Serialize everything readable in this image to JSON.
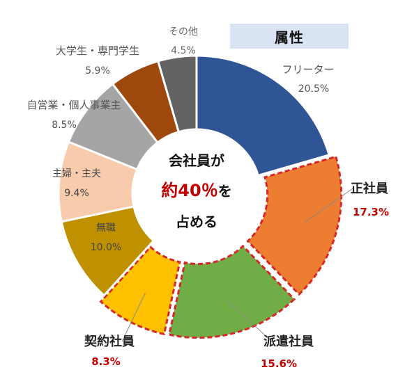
{
  "badge": "属性",
  "center_text": {
    "line1": "会社員が",
    "line2_emph": "約40％",
    "line2_rest": "を",
    "line3": "占める"
  },
  "colors": {
    "highlight_stroke": "#d62828",
    "emphasis_text": "#c00000",
    "badge_bg": "#dae3f3"
  },
  "chart_data": {
    "type": "pie",
    "variant": "donut",
    "title": "",
    "categories": [
      "フリーター",
      "正社員",
      "派遣社員",
      "契約社員",
      "無職",
      "主婦・主夫",
      "自営業・個人事業主",
      "大学生・専門学生",
      "その他"
    ],
    "values": [
      20.5,
      17.3,
      15.6,
      8.3,
      10.0,
      9.4,
      8.5,
      5.9,
      4.5
    ],
    "value_labels": [
      "20.5%",
      "17.3%",
      "15.6%",
      "8.3%",
      "10.0%",
      "9.4%",
      "8.5%",
      "5.9%",
      "4.5%"
    ],
    "colors": [
      "#2f5597",
      "#ed7d31",
      "#70ad47",
      "#ffc000",
      "#bf9000",
      "#f8cbad",
      "#a5a5a5",
      "#9e480e",
      "#636363"
    ],
    "highlighted": [
      "正社員",
      "派遣社員",
      "契約社員"
    ],
    "legend": "none"
  }
}
